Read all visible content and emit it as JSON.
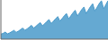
{
  "chart_data": {
    "type": "area",
    "values": [
      2.0,
      2.3,
      2.8,
      2.1,
      2.5,
      3.0,
      3.5,
      2.7,
      3.2,
      3.8,
      4.4,
      3.5,
      4.1,
      4.8,
      5.5,
      4.4,
      5.1,
      5.9,
      6.6,
      5.3,
      6.1,
      7.0,
      7.8,
      6.2,
      7.1,
      8.1,
      9.0,
      7.2,
      8.2,
      9.3,
      10.2,
      8.1,
      9.3,
      10.5,
      11.5,
      9.2,
      10.5,
      11.8,
      12.8,
      10.2,
      11.6,
      13.0,
      14.1,
      11.2,
      12.7,
      14.2,
      15.3,
      12.1,
      13.7,
      15.3
    ],
    "color": "#4a9aca",
    "xlim": [
      0,
      49
    ],
    "ylim": [
      0,
      15.606
    ],
    "tick_labels": false,
    "grid": false
  }
}
